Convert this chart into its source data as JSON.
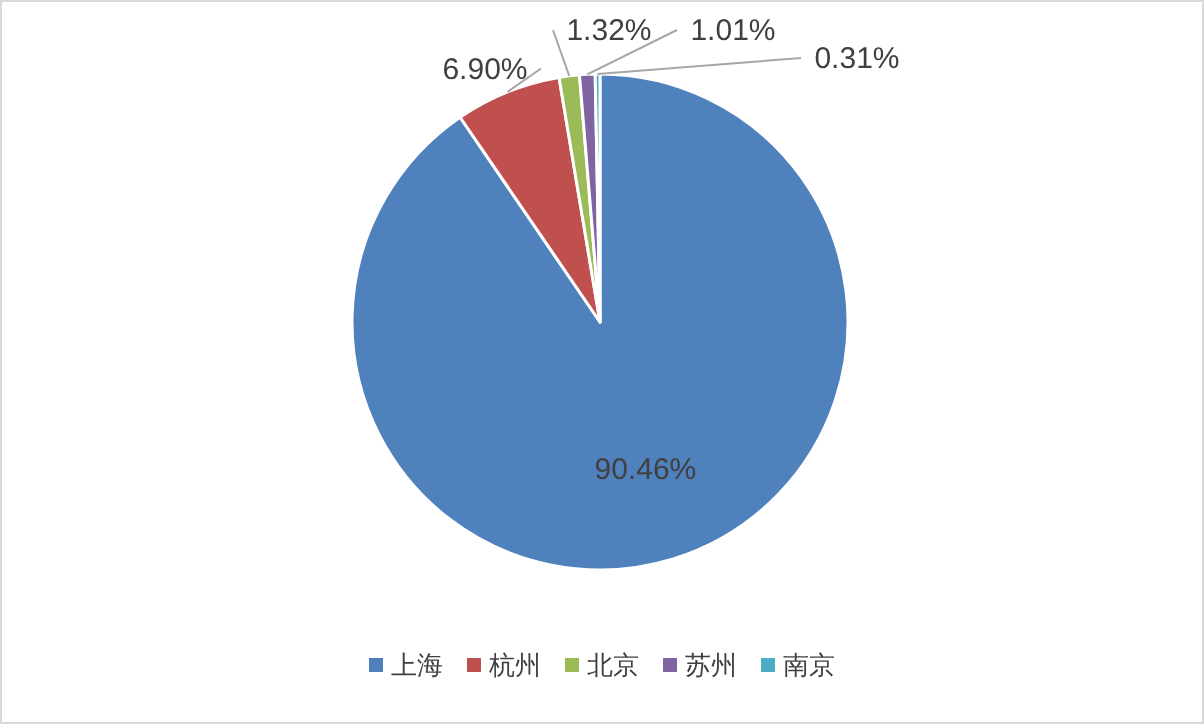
{
  "chart_data": {
    "type": "pie",
    "categories": [
      "上海",
      "杭州",
      "北京",
      "苏州",
      "南京"
    ],
    "values": [
      90.46,
      6.9,
      1.32,
      1.01,
      0.31
    ],
    "colors": [
      "#4f81bd",
      "#c0504d",
      "#9bbb59",
      "#8064a2",
      "#4bacc6"
    ],
    "value_labels": [
      "90.46%",
      "6.90%",
      "1.32%",
      "1.01%",
      "0.31%"
    ],
    "legend": "bottom"
  }
}
